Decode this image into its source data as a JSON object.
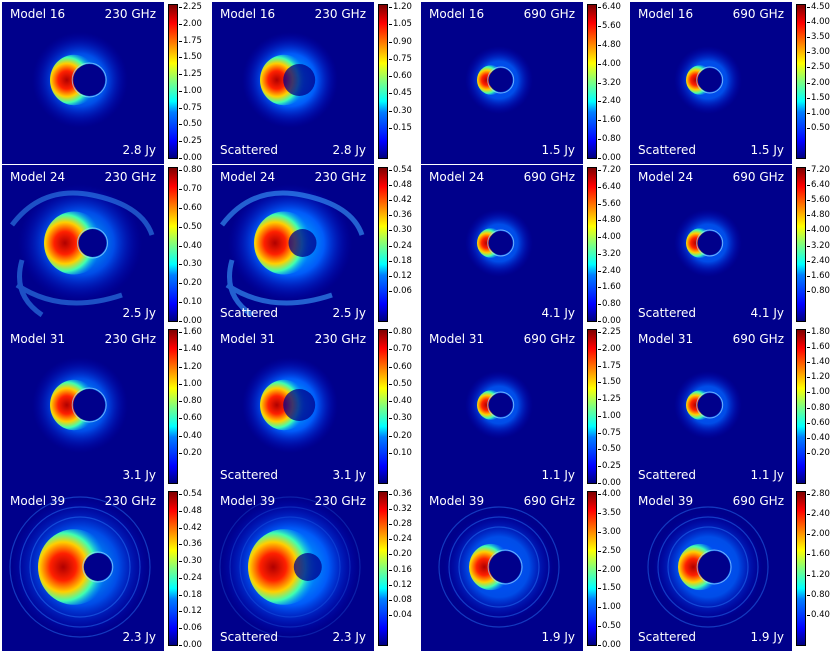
{
  "scattered_label": "Scattered",
  "colormap": [
    "#00007f",
    "#0000ff",
    "#007fff",
    "#00ffff",
    "#7fff7f",
    "#ffff00",
    "#ff7f00",
    "#ff0000",
    "#7f0000"
  ],
  "rows": [
    {
      "model": "Model 16",
      "panels": [
        {
          "freq": "230 GHz",
          "scattered": false,
          "flux": "2.8 Jy",
          "style": "thin",
          "ticks": [
            "2.25",
            "2.00",
            "1.75",
            "1.50",
            "1.25",
            "1.00",
            "0.75",
            "0.50",
            "0.25",
            "0.00"
          ]
        },
        {
          "freq": "230 GHz",
          "scattered": true,
          "flux": "2.8 Jy",
          "style": "blur",
          "ticks": [
            "1.20",
            "1.05",
            "0.90",
            "0.75",
            "0.60",
            "0.45",
            "0.30",
            "0.15"
          ]
        },
        {
          "freq": "690 GHz",
          "scattered": false,
          "flux": "1.5 Jy",
          "style": "small",
          "ticks": [
            "6.40",
            "5.60",
            "4.80",
            "4.00",
            "3.20",
            "2.40",
            "1.60",
            "0.80",
            "0.00"
          ]
        },
        {
          "freq": "690 GHz",
          "scattered": true,
          "flux": "1.5 Jy",
          "style": "small",
          "ticks": [
            "4.50",
            "4.00",
            "3.50",
            "3.00",
            "2.50",
            "2.00",
            "1.50",
            "1.00",
            "0.50"
          ]
        }
      ]
    },
    {
      "model": "Model 24",
      "panels": [
        {
          "freq": "230 GHz",
          "scattered": false,
          "flux": "2.5 Jy",
          "style": "wide",
          "ticks": [
            "0.80",
            "0.70",
            "0.60",
            "0.50",
            "0.40",
            "0.30",
            "0.20",
            "0.10",
            "0.00"
          ]
        },
        {
          "freq": "230 GHz",
          "scattered": true,
          "flux": "2.5 Jy",
          "style": "wideblur",
          "ticks": [
            "0.54",
            "0.48",
            "0.42",
            "0.36",
            "0.30",
            "0.24",
            "0.18",
            "0.12",
            "0.06"
          ]
        },
        {
          "freq": "690 GHz",
          "scattered": false,
          "flux": "4.1 Jy",
          "style": "small",
          "ticks": [
            "7.20",
            "6.40",
            "5.60",
            "4.80",
            "4.00",
            "3.20",
            "2.40",
            "1.60",
            "0.80",
            "0.00"
          ]
        },
        {
          "freq": "690 GHz",
          "scattered": true,
          "flux": "4.1 Jy",
          "style": "small",
          "ticks": [
            "7.20",
            "6.40",
            "5.60",
            "4.80",
            "4.00",
            "3.20",
            "2.40",
            "1.60",
            "0.80"
          ]
        }
      ]
    },
    {
      "model": "Model 31",
      "panels": [
        {
          "freq": "230 GHz",
          "scattered": false,
          "flux": "3.1 Jy",
          "style": "thin",
          "ticks": [
            "1.60",
            "1.40",
            "1.20",
            "1.00",
            "0.80",
            "0.60",
            "0.40",
            "0.20"
          ]
        },
        {
          "freq": "230 GHz",
          "scattered": true,
          "flux": "3.1 Jy",
          "style": "blur",
          "ticks": [
            "0.80",
            "0.70",
            "0.60",
            "0.50",
            "0.40",
            "0.30",
            "0.20",
            "0.10"
          ]
        },
        {
          "freq": "690 GHz",
          "scattered": false,
          "flux": "1.1 Jy",
          "style": "small",
          "ticks": [
            "2.25",
            "2.00",
            "1.75",
            "1.50",
            "1.25",
            "1.00",
            "0.75",
            "0.50",
            "0.25",
            "0.00"
          ]
        },
        {
          "freq": "690 GHz",
          "scattered": true,
          "flux": "1.1 Jy",
          "style": "small",
          "ticks": [
            "1.80",
            "1.60",
            "1.40",
            "1.20",
            "1.00",
            "0.80",
            "0.60",
            "0.40",
            "0.20"
          ]
        }
      ]
    },
    {
      "model": "Model 39",
      "panels": [
        {
          "freq": "230 GHz",
          "scattered": false,
          "flux": "2.3 Jy",
          "style": "big",
          "ticks": [
            "0.54",
            "0.48",
            "0.42",
            "0.36",
            "0.30",
            "0.24",
            "0.18",
            "0.12",
            "0.06",
            "0.00"
          ]
        },
        {
          "freq": "230 GHz",
          "scattered": true,
          "flux": "2.3 Jy",
          "style": "bigblur",
          "ticks": [
            "0.36",
            "0.32",
            "0.28",
            "0.24",
            "0.20",
            "0.16",
            "0.12",
            "0.08",
            "0.04"
          ]
        },
        {
          "freq": "690 GHz",
          "scattered": false,
          "flux": "1.9 Jy",
          "style": "ring",
          "ticks": [
            "4.00",
            "3.50",
            "3.00",
            "2.50",
            "2.00",
            "1.50",
            "1.00",
            "0.50",
            "0.00"
          ]
        },
        {
          "freq": "690 GHz",
          "scattered": true,
          "flux": "1.9 Jy",
          "style": "ring",
          "ticks": [
            "2.80",
            "2.40",
            "2.00",
            "1.60",
            "1.20",
            "0.80",
            "0.40"
          ]
        }
      ]
    }
  ]
}
